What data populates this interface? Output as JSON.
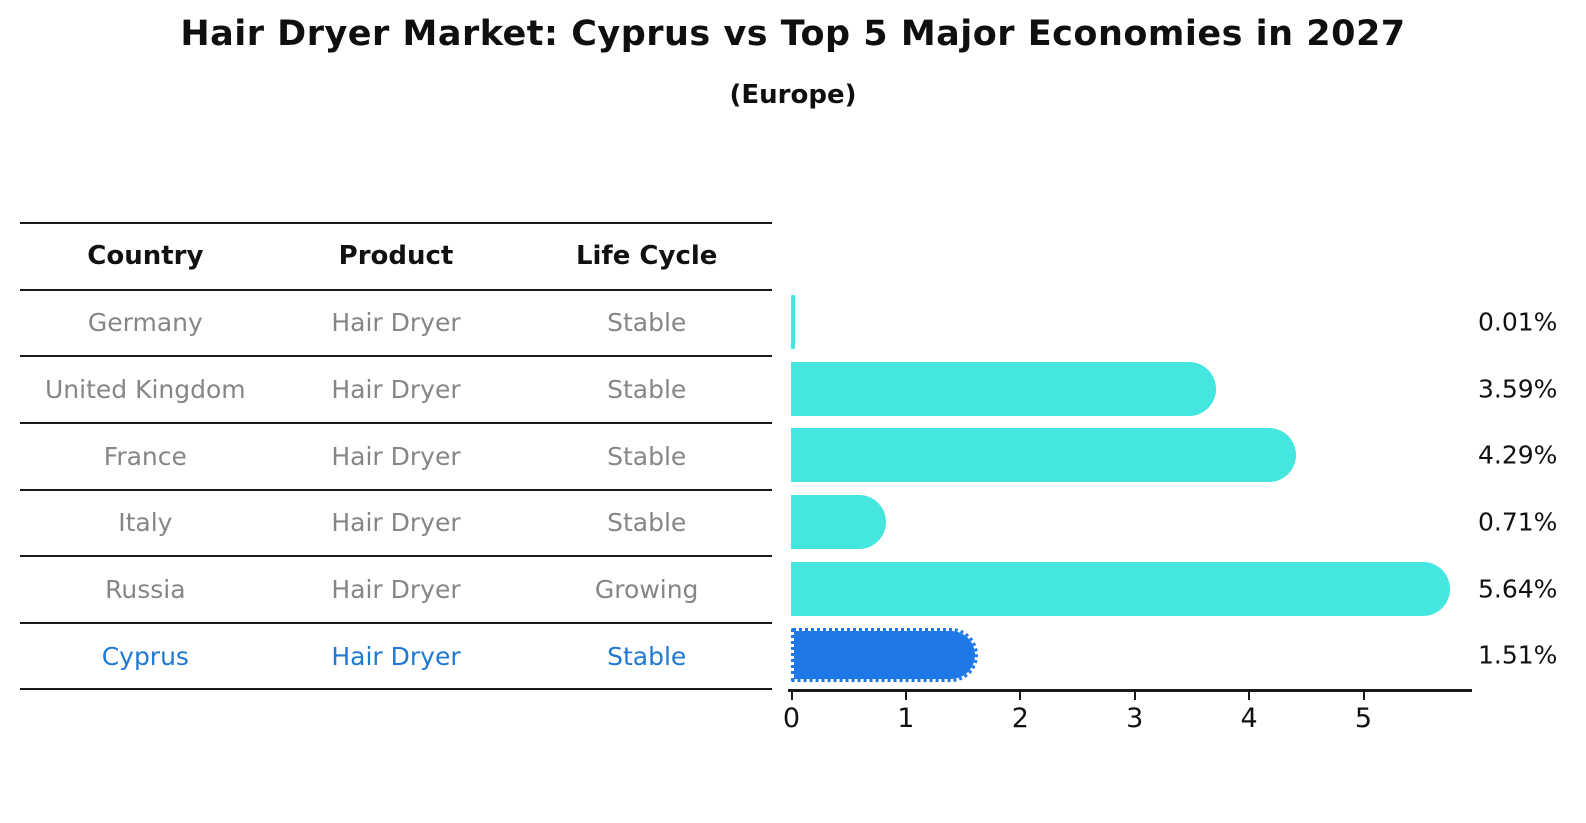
{
  "title": "Hair Dryer Market: Cyprus vs Top 5 Major Economies in 2027",
  "subtitle": "(Europe)",
  "table": {
    "headers": [
      "Country",
      "Product",
      "Life Cycle"
    ],
    "rows": [
      {
        "country": "Germany",
        "product": "Hair Dryer",
        "life_cycle": "Stable",
        "highlighted": false
      },
      {
        "country": "United Kingdom",
        "product": "Hair Dryer",
        "life_cycle": "Stable",
        "highlighted": false
      },
      {
        "country": "France",
        "product": "Hair Dryer",
        "life_cycle": "Stable",
        "highlighted": false
      },
      {
        "country": "Italy",
        "product": "Hair Dryer",
        "life_cycle": "Stable",
        "highlighted": false
      },
      {
        "country": "Russia",
        "product": "Hair Dryer",
        "life_cycle": "Growing",
        "highlighted": false
      },
      {
        "country": "Cyprus",
        "product": "Hair Dryer",
        "life_cycle": "Stable",
        "highlighted": true
      }
    ]
  },
  "chart_data": {
    "type": "bar",
    "orientation": "horizontal",
    "title": "Hair Dryer Market: Cyprus vs Top 5 Major Economies in 2027 (Europe)",
    "categories": [
      "Germany",
      "United Kingdom",
      "France",
      "Italy",
      "Russia",
      "Cyprus"
    ],
    "values": [
      0.01,
      3.59,
      4.29,
      0.71,
      5.64,
      1.51
    ],
    "labels": [
      "0.01%",
      "3.59%",
      "4.29%",
      "0.71%",
      "5.64%",
      "1.51%"
    ],
    "x_ticks": [
      0,
      1,
      2,
      3,
      4,
      5
    ],
    "xlim": [
      0,
      5.95
    ],
    "xlabel": "",
    "ylabel": "",
    "grid": false,
    "legend": false,
    "bar_color": "#46e6e0",
    "highlight_color": "#1e78e8",
    "highlight_index": 5
  },
  "colors": {
    "bar_cyan": "#46e6e0",
    "bar_blue": "#1e78e8",
    "highlight_text_blue": "#1f78d1",
    "muted_text_gray": "#868686",
    "axis_black": "#1a1a1a"
  }
}
